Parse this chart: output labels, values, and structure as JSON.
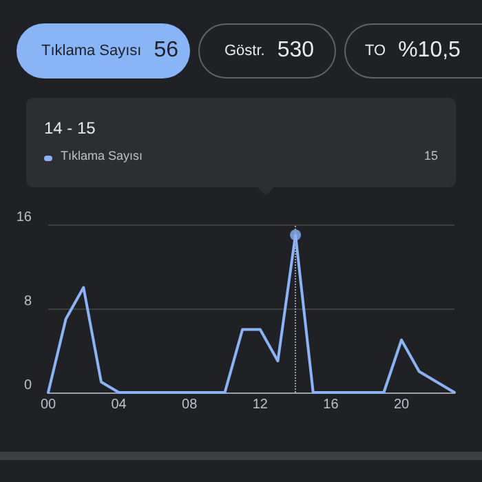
{
  "chart_data": {
    "type": "line",
    "annotations": [
      "Tıklama Sayısı",
      "56",
      "Göstr.",
      "530",
      "TO",
      "%10,5",
      "14 - 15",
      "Tıklama Sayısı",
      "15"
    ],
    "x": [
      0,
      1,
      2,
      3,
      4,
      5,
      6,
      7,
      8,
      9,
      10,
      11,
      12,
      13,
      14,
      15,
      16,
      17,
      18,
      19,
      20,
      21,
      22,
      23
    ],
    "series": [
      {
        "color": "#8ab4f8",
        "values": [
          0,
          7,
          10,
          1,
          0,
          0,
          0,
          0,
          0,
          0,
          0,
          6,
          6,
          3,
          15,
          0,
          0,
          0,
          0,
          0,
          5,
          2,
          1,
          0
        ]
      },
      {
        "type": "scatter",
        "color": "#8ab4f8",
        "x": [
          14
        ],
        "values": [
          15
        ]
      }
    ],
    "xlim": [
      0,
      23
    ],
    "xticks": [
      {
        "value": 0,
        "label": "00"
      },
      {
        "value": 4,
        "label": "04"
      },
      {
        "value": 8,
        "label": "08"
      },
      {
        "value": 12,
        "label": "12"
      },
      {
        "value": 16,
        "label": "16"
      },
      {
        "value": 20,
        "label": "20"
      }
    ],
    "ylim": [
      0,
      16
    ],
    "yticks": [
      0,
      8,
      16
    ],
    "ref_lines": [
      {
        "axis": "x",
        "value": 14,
        "line_style": "dotted",
        "color": "#9aa0a6"
      }
    ],
    "grid": "y",
    "line_style": "solid"
  }
}
